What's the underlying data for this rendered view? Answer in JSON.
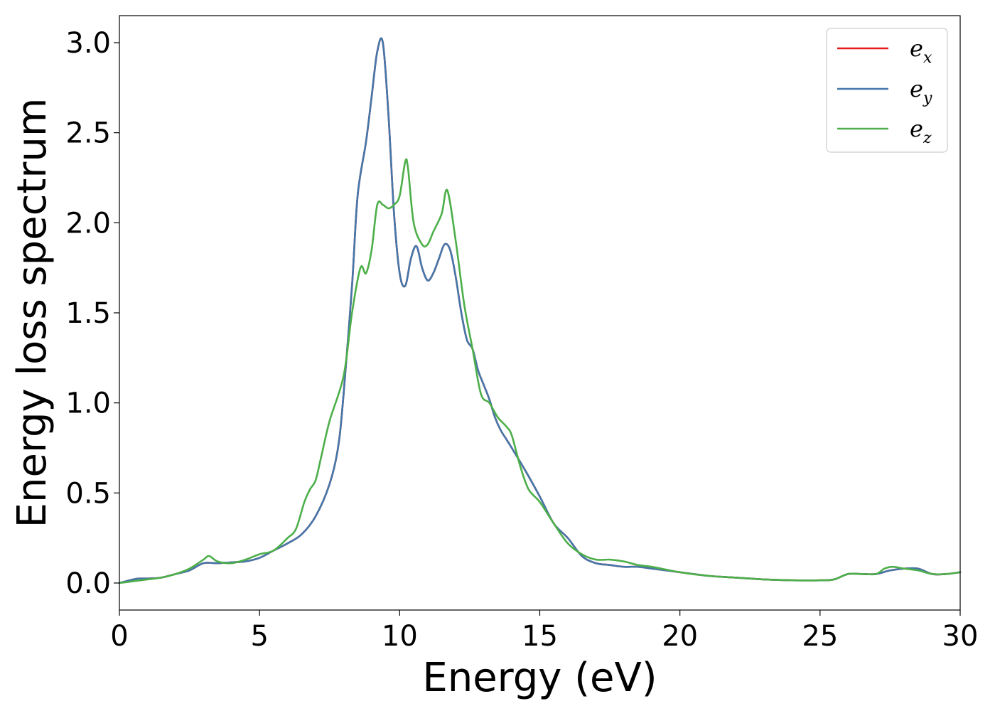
{
  "chart_data": {
    "type": "line",
    "xlabel": "Energy (eV)",
    "ylabel": "Energy loss spectrum",
    "xlim": [
      0,
      30
    ],
    "ylim": [
      -0.15,
      3.15
    ],
    "xticks": [
      0,
      5,
      10,
      15,
      20,
      25,
      30
    ],
    "xtick_labels": [
      "0",
      "5",
      "10",
      "15",
      "20",
      "25",
      "30"
    ],
    "yticks": [
      0.0,
      0.5,
      1.0,
      1.5,
      2.0,
      2.5,
      3.0
    ],
    "ytick_labels": [
      "0.0",
      "0.5",
      "1.0",
      "1.5",
      "2.0",
      "2.5",
      "3.0"
    ],
    "grid": false,
    "legend_position": "top-right",
    "series": [
      {
        "name": "e",
        "subscript": "x",
        "color": "#e41a1c",
        "x": [
          0,
          0.5,
          0.7,
          1,
          1.5,
          2,
          2.5,
          3,
          3.5,
          4,
          4.5,
          5,
          5.5,
          6,
          6.5,
          7,
          7.5,
          7.8,
          8,
          8.3,
          8.5,
          8.8,
          9,
          9.2,
          9.4,
          9.6,
          9.8,
          10,
          10.2,
          10.4,
          10.6,
          10.8,
          11,
          11.2,
          11.4,
          11.6,
          11.8,
          12,
          12.2,
          12.4,
          12.6,
          12.8,
          13,
          13.2,
          13.4,
          13.6,
          13.8,
          14,
          14.5,
          15,
          15.5,
          16,
          16.5,
          17,
          17.5,
          18,
          18.5,
          19,
          20,
          21,
          22,
          23,
          24,
          25,
          25.5,
          26,
          26.5,
          27,
          27.5,
          28,
          28.5,
          29,
          29.5,
          30
        ],
        "y": [
          0.0,
          0.02,
          0.025,
          0.025,
          0.03,
          0.05,
          0.07,
          0.11,
          0.11,
          0.115,
          0.12,
          0.14,
          0.18,
          0.22,
          0.27,
          0.37,
          0.55,
          0.75,
          1.05,
          1.65,
          2.15,
          2.45,
          2.7,
          2.95,
          3.0,
          2.6,
          2.05,
          1.72,
          1.65,
          1.8,
          1.87,
          1.75,
          1.68,
          1.72,
          1.8,
          1.88,
          1.85,
          1.7,
          1.5,
          1.35,
          1.3,
          1.18,
          1.1,
          1.02,
          0.92,
          0.85,
          0.8,
          0.75,
          0.62,
          0.48,
          0.33,
          0.25,
          0.15,
          0.11,
          0.1,
          0.09,
          0.09,
          0.08,
          0.06,
          0.04,
          0.03,
          0.02,
          0.015,
          0.015,
          0.02,
          0.05,
          0.05,
          0.05,
          0.07,
          0.08,
          0.08,
          0.05,
          0.05,
          0.06
        ]
      },
      {
        "name": "e",
        "subscript": "y",
        "color": "#4477aa",
        "x": [
          0,
          0.5,
          0.7,
          1,
          1.5,
          2,
          2.5,
          3,
          3.5,
          4,
          4.5,
          5,
          5.5,
          6,
          6.5,
          7,
          7.5,
          7.8,
          8,
          8.3,
          8.5,
          8.8,
          9,
          9.2,
          9.4,
          9.6,
          9.8,
          10,
          10.2,
          10.4,
          10.6,
          10.8,
          11,
          11.2,
          11.4,
          11.6,
          11.8,
          12,
          12.2,
          12.4,
          12.6,
          12.8,
          13,
          13.2,
          13.4,
          13.6,
          13.8,
          14,
          14.5,
          15,
          15.5,
          16,
          16.5,
          17,
          17.5,
          18,
          18.5,
          19,
          20,
          21,
          22,
          23,
          24,
          25,
          25.5,
          26,
          26.5,
          27,
          27.5,
          28,
          28.5,
          29,
          29.5,
          30
        ],
        "y": [
          0.0,
          0.02,
          0.025,
          0.025,
          0.03,
          0.05,
          0.07,
          0.11,
          0.11,
          0.115,
          0.12,
          0.14,
          0.18,
          0.22,
          0.27,
          0.37,
          0.55,
          0.75,
          1.05,
          1.65,
          2.15,
          2.45,
          2.7,
          2.95,
          3.0,
          2.6,
          2.05,
          1.72,
          1.65,
          1.8,
          1.87,
          1.75,
          1.68,
          1.72,
          1.8,
          1.88,
          1.85,
          1.7,
          1.5,
          1.35,
          1.3,
          1.18,
          1.1,
          1.02,
          0.92,
          0.85,
          0.8,
          0.75,
          0.62,
          0.48,
          0.33,
          0.25,
          0.15,
          0.11,
          0.1,
          0.09,
          0.09,
          0.08,
          0.06,
          0.04,
          0.03,
          0.02,
          0.015,
          0.015,
          0.02,
          0.05,
          0.05,
          0.05,
          0.07,
          0.08,
          0.08,
          0.05,
          0.05,
          0.06
        ]
      },
      {
        "name": "e",
        "subscript": "z",
        "color": "#4daf4a",
        "x": [
          0,
          0.5,
          1,
          1.5,
          2,
          2.5,
          3,
          3.2,
          3.5,
          4,
          4.5,
          5,
          5.5,
          6,
          6.3,
          6.6,
          6.8,
          7,
          7.2,
          7.5,
          8,
          8.3,
          8.6,
          8.8,
          9,
          9.2,
          9.4,
          9.6,
          9.8,
          10,
          10.2,
          10.3,
          10.5,
          10.8,
          11,
          11.2,
          11.5,
          11.7,
          12,
          12.3,
          12.6,
          12.9,
          13.2,
          13.5,
          13.8,
          14,
          14.3,
          14.6,
          15,
          15.5,
          16,
          16.5,
          17,
          17.5,
          18,
          18.5,
          19,
          20,
          21,
          22,
          23,
          24,
          25,
          25.5,
          26,
          26.5,
          27,
          27.3,
          27.6,
          28,
          28.5,
          29,
          29.5,
          30
        ],
        "y": [
          0.0,
          0.01,
          0.02,
          0.03,
          0.05,
          0.08,
          0.13,
          0.15,
          0.12,
          0.11,
          0.13,
          0.16,
          0.18,
          0.25,
          0.3,
          0.45,
          0.52,
          0.57,
          0.7,
          0.9,
          1.15,
          1.5,
          1.75,
          1.72,
          1.85,
          2.1,
          2.1,
          2.08,
          2.1,
          2.15,
          2.34,
          2.3,
          2.0,
          1.88,
          1.88,
          1.95,
          2.05,
          2.18,
          1.9,
          1.55,
          1.3,
          1.05,
          1.0,
          0.92,
          0.87,
          0.82,
          0.65,
          0.52,
          0.45,
          0.33,
          0.22,
          0.16,
          0.13,
          0.13,
          0.12,
          0.1,
          0.09,
          0.06,
          0.04,
          0.03,
          0.02,
          0.015,
          0.015,
          0.02,
          0.05,
          0.05,
          0.05,
          0.08,
          0.09,
          0.08,
          0.07,
          0.05,
          0.05,
          0.06
        ]
      }
    ]
  }
}
